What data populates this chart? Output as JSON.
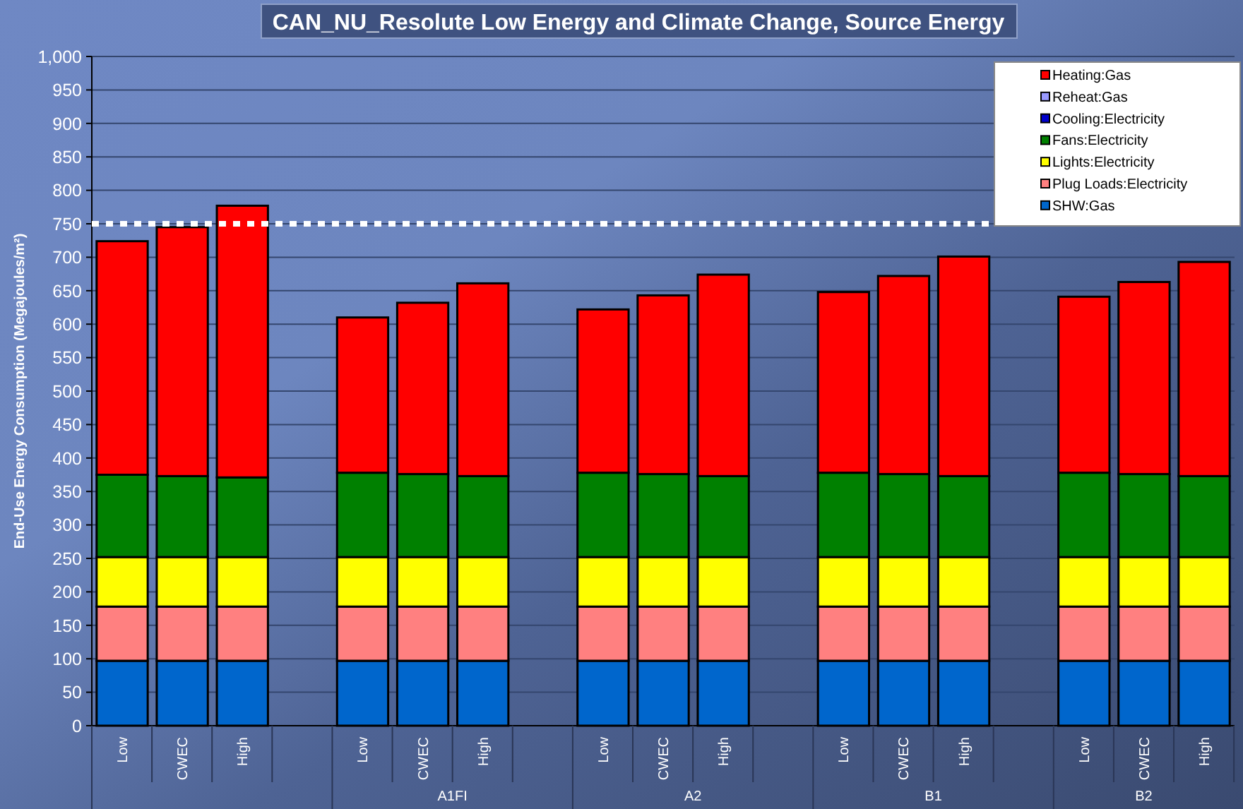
{
  "chart_data": {
    "type": "bar",
    "stacked": true,
    "title": "CAN_NU_Resolute Low Energy and Climate Change, Source Energy",
    "ylabel": "End-Use Energy Consumption  (Megajoules/m²)",
    "categories": [
      "Low",
      "CWEC",
      "High",
      null,
      "Low",
      "CWEC",
      "High",
      null,
      "Low",
      "CWEC",
      "High",
      null,
      "Low",
      "CWEC",
      "High",
      null,
      "Low",
      "CWEC",
      "High"
    ],
    "annotations": [
      "A1FI",
      "A2",
      "B1",
      "B2"
    ],
    "series": [
      {
        "name": "SHW:Gas",
        "color": "#0066cc",
        "values": [
          97,
          97,
          97,
          null,
          97,
          97,
          97,
          null,
          97,
          97,
          97,
          null,
          97,
          97,
          97,
          null,
          97,
          97,
          97
        ]
      },
      {
        "name": "Plug Loads:Electricity",
        "color": "#ff8080",
        "values": [
          81,
          81,
          81,
          null,
          81,
          81,
          81,
          null,
          81,
          81,
          81,
          null,
          81,
          81,
          81,
          null,
          81,
          81,
          81
        ]
      },
      {
        "name": "Lights:Electricity",
        "color": "#ffff00",
        "values": [
          74,
          74,
          74,
          null,
          74,
          74,
          74,
          null,
          74,
          74,
          74,
          null,
          74,
          74,
          74,
          null,
          74,
          74,
          74
        ]
      },
      {
        "name": "Fans:Electricity",
        "color": "#008000",
        "values": [
          123,
          121,
          119,
          null,
          126,
          124,
          121,
          null,
          126,
          124,
          121,
          null,
          126,
          124,
          121,
          null,
          126,
          124,
          121
        ]
      },
      {
        "name": "Cooling:Electricity",
        "color": "#0000cc",
        "values": [
          0,
          0,
          0,
          null,
          0,
          0,
          0,
          null,
          0,
          0,
          0,
          null,
          0,
          0,
          0,
          null,
          0,
          0,
          0
        ]
      },
      {
        "name": "Reheat:Gas",
        "color": "#9999ff",
        "values": [
          0,
          0,
          0,
          null,
          0,
          0,
          0,
          null,
          0,
          0,
          0,
          null,
          0,
          0,
          0,
          null,
          0,
          0,
          0
        ]
      },
      {
        "name": "Heating:Gas",
        "color": "#ff0000",
        "values": [
          349,
          372,
          406,
          null,
          232,
          256,
          288,
          null,
          244,
          267,
          301,
          null,
          270,
          296,
          328,
          null,
          263,
          287,
          320
        ]
      }
    ],
    "ylim": [
      0,
      1000
    ],
    "yticks": [
      0,
      50,
      100,
      150,
      200,
      250,
      300,
      350,
      400,
      450,
      500,
      550,
      600,
      650,
      700,
      750,
      800,
      850,
      900,
      950,
      {
        "value": 1000,
        "label": "1,000"
      }
    ],
    "grid": "y",
    "legend": "top right",
    "ref_lines": [
      {
        "axis": "y",
        "value": 750,
        "color": "#ffffff",
        "line_style": "dotted"
      }
    ]
  }
}
